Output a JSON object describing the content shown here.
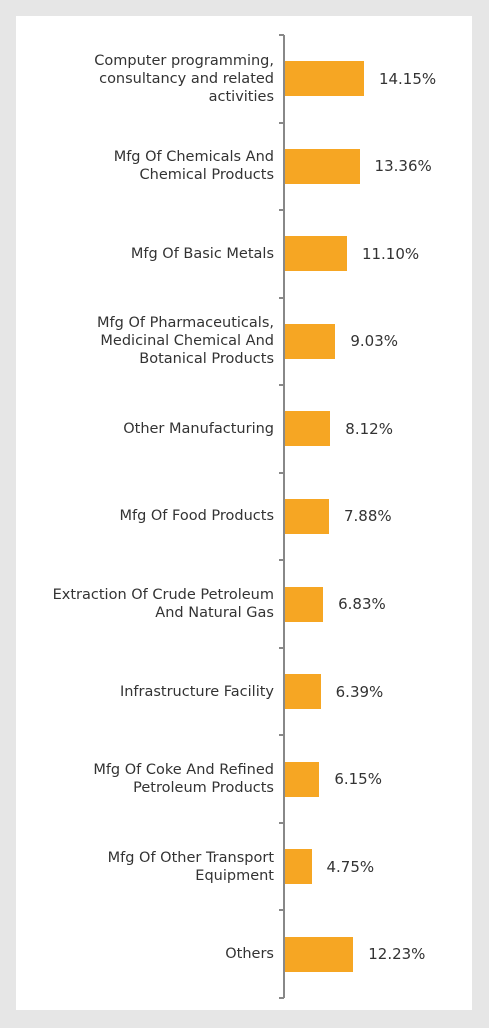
{
  "chart_data": {
    "type": "bar",
    "orientation": "horizontal",
    "categories": [
      "Computer programming, consultancy and related activities",
      "Mfg Of Chemicals And Chemical Products",
      "Mfg Of Basic Metals",
      "Mfg Of Pharmaceuticals, Medicinal Chemical And Botanical Products",
      "Other Manufacturing",
      "Mfg Of Food Products",
      "Extraction Of Crude Petroleum And Natural Gas",
      "Infrastructure Facility",
      "Mfg Of Coke And Refined Petroleum Products",
      "Mfg Of Other Transport Equipment",
      "Others"
    ],
    "values": [
      14.15,
      13.36,
      11.1,
      9.03,
      8.12,
      7.88,
      6.83,
      6.39,
      6.15,
      4.75,
      12.23
    ],
    "value_labels": [
      "14.15%",
      "13.36%",
      "11.10%",
      "9.03%",
      "8.12%",
      "7.88%",
      "6.83%",
      "6.39%",
      "6.15%",
      "4.75%",
      "12.23%"
    ],
    "color": "#f6a623"
  }
}
